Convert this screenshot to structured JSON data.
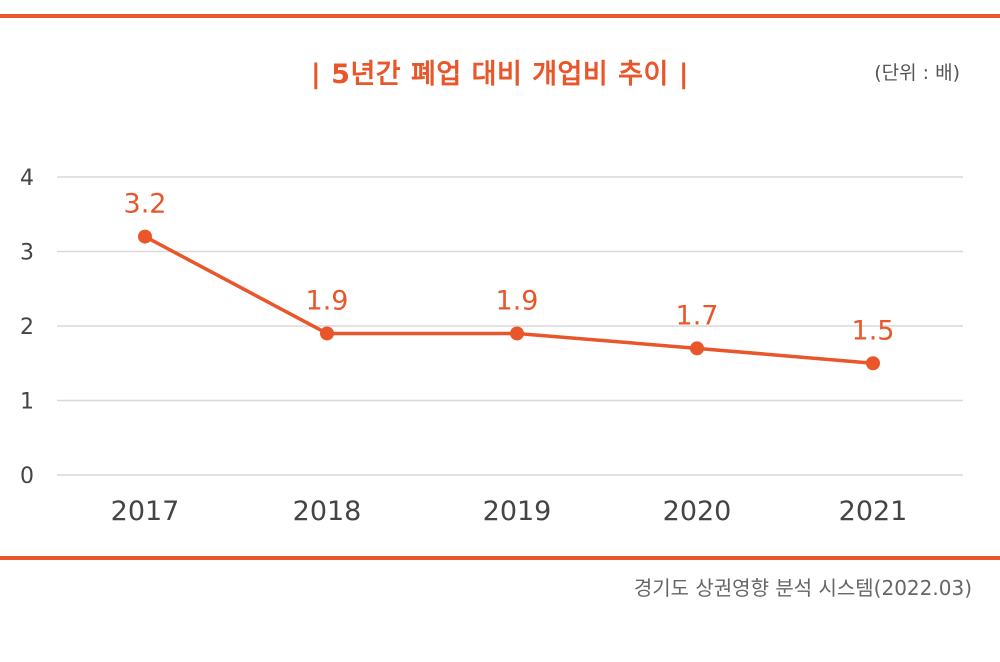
{
  "header": {
    "title": "| 5년간 폐업 대비 개업비 추이 |",
    "unit": "(단위 : 배)"
  },
  "footer": {
    "source": "경기도 상권영향 분석 시스템(2022.03)"
  },
  "colors": {
    "accent": "#e8562a",
    "grid": "#d9d9d9",
    "text": "#444444"
  },
  "chart_data": {
    "type": "line",
    "title": "| 5년간 폐업 대비 개업비 추이 |",
    "xlabel": "",
    "ylabel": "",
    "categories": [
      "2017",
      "2018",
      "2019",
      "2020",
      "2021"
    ],
    "series": [
      {
        "values": [
          3.2,
          1.9,
          1.9,
          1.7,
          1.5
        ],
        "labels": [
          "3.2",
          "1.9",
          "1.9",
          "1.7",
          "1.5"
        ]
      }
    ],
    "ylim": [
      0,
      4
    ],
    "yticks": [
      0,
      1,
      2,
      3,
      4
    ],
    "grid": true,
    "legend": "none"
  }
}
